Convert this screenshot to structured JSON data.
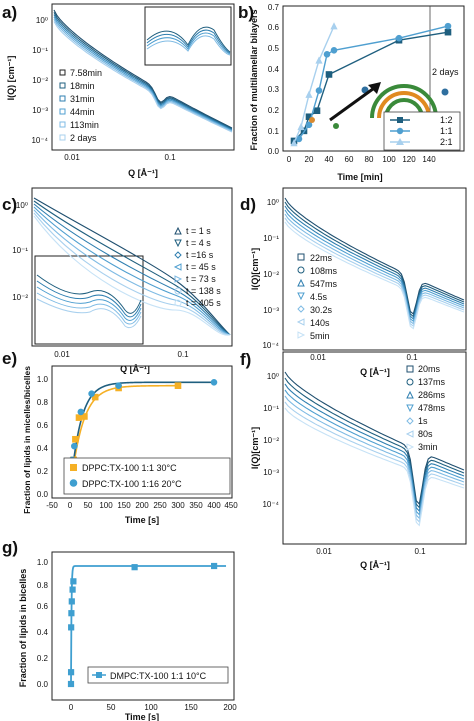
{
  "panels": {
    "a": {
      "label": "a)",
      "ylabel": "I(Q) [cm⁻¹]",
      "xlabel": "Q [Å⁻¹]",
      "legend": [
        "7.58min",
        "18min",
        "31min",
        "44min",
        "113min",
        "2 days"
      ],
      "yticks": [
        "10⁰",
        "10⁻¹",
        "10⁻²",
        "10⁻³",
        "10⁻⁴"
      ],
      "xticks": [
        "0.01",
        "0.1"
      ]
    },
    "b": {
      "label": "b)",
      "ylabel": "Fraction of multilamellar bilayers",
      "xlabel": "Time [min]",
      "annotation": "2 days",
      "legend": [
        "1:2",
        "1:1",
        "2:1"
      ],
      "yticks": [
        "0.0",
        "0.1",
        "0.2",
        "0.3",
        "0.4",
        "0.5",
        "0.6",
        "0.7"
      ],
      "xticks": [
        "0",
        "20",
        "40",
        "60",
        "80",
        "100",
        "120",
        "140"
      ]
    },
    "c": {
      "label": "c)",
      "xlabel": "Q [Å⁻¹]",
      "legend": [
        "t = 1 s",
        "t = 4 s",
        "t =16 s",
        "t = 45 s",
        "t = 73 s",
        "t = 138 s",
        "t = 405 s"
      ],
      "yticks": [
        "10⁰",
        "10⁻¹",
        "10⁻²"
      ],
      "xticks": [
        "0.01",
        "0.1"
      ]
    },
    "d": {
      "label": "d)",
      "ylabel": "I(Q)[cm⁻¹]",
      "xlabel": "Q [Å⁻¹]",
      "legend": [
        "22ms",
        "108ms",
        "547ms",
        "4.5s",
        "30.2s",
        "140s",
        "5min"
      ],
      "yticks": [
        "10⁰",
        "10⁻¹",
        "10⁻²",
        "10⁻³",
        "10⁻⁴"
      ],
      "xticks": [
        "0.01",
        "0.1"
      ]
    },
    "e": {
      "label": "e)",
      "ylabel": "Fraction of lipids in micelles/bicelles",
      "xlabel": "Time [s]",
      "legend": [
        "DPPC:TX-100 1:1 30°C",
        "DPPC:TX-100 1:16 20°C"
      ],
      "yticks": [
        "0.0",
        "0.2",
        "0.4",
        "0.6",
        "0.8",
        "1.0"
      ],
      "xticks": [
        "-50",
        "0",
        "50",
        "100",
        "150",
        "200",
        "250",
        "300",
        "350",
        "400",
        "450"
      ]
    },
    "f": {
      "label": "f)",
      "ylabel": "I(Q)[cm⁻¹]",
      "xlabel": "Q [Å⁻¹]",
      "legend": [
        "20ms",
        "137ms",
        "286ms",
        "478ms",
        "1s",
        "80s",
        "3min"
      ],
      "yticks": [
        "10⁰",
        "10⁻¹",
        "10⁻²",
        "10⁻³",
        "10⁻⁴"
      ],
      "xticks": [
        "0.01",
        "0.1"
      ]
    },
    "g": {
      "label": "g)",
      "ylabel": "Fraction of lipids in bicelles",
      "xlabel": "Time [s]",
      "legend": [
        "DMPC:TX-100 1:1 10°C"
      ],
      "yticks": [
        "0.0",
        "0.2",
        "0.4",
        "0.6",
        "0.8",
        "1.0"
      ],
      "xticks": [
        "0",
        "50",
        "100",
        "150",
        "200"
      ]
    }
  },
  "colors": {
    "dark": "#1f5f7f",
    "mid": "#4f9fd0",
    "light": "#a8d0ee",
    "orange": "#f5b025",
    "e_blue": "#3f9fd0",
    "black": "#222222"
  },
  "chart_data": [
    {
      "type": "line",
      "panel": "b",
      "xlim": [
        0,
        170
      ],
      "ylim": [
        0,
        0.7
      ],
      "series": [
        {
          "name": "1:2",
          "x": [
            5,
            15,
            20,
            28,
            40,
            110,
            165
          ],
          "y": [
            0.05,
            0.1,
            0.17,
            0.2,
            0.38,
            0.55,
            0.59
          ]
        },
        {
          "name": "1:1",
          "x": [
            10,
            20,
            30,
            38,
            45,
            110,
            165
          ],
          "y": [
            0.06,
            0.13,
            0.3,
            0.48,
            0.5,
            0.56,
            0.62
          ]
        },
        {
          "name": "2:1",
          "x": [
            5,
            12,
            20,
            30,
            45
          ],
          "y": [
            0.04,
            0.12,
            0.28,
            0.45,
            0.62
          ]
        }
      ]
    },
    {
      "type": "scatter",
      "panel": "e",
      "xlim": [
        -50,
        450
      ],
      "ylim": [
        0,
        1.0
      ],
      "series": [
        {
          "name": "DPPC:TX-100 1:1 30°C",
          "x": [
            5,
            10,
            15,
            25,
            40,
            70,
            135,
            300
          ],
          "y": [
            0.1,
            0.3,
            0.48,
            0.67,
            0.68,
            0.85,
            0.93,
            0.95
          ]
        },
        {
          "name": "DPPC:TX-100 1:16 20°C",
          "x": [
            0,
            2,
            6,
            12,
            30,
            60,
            135,
            400
          ],
          "y": [
            0.05,
            0.18,
            0.3,
            0.42,
            0.72,
            0.88,
            0.95,
            0.98
          ]
        }
      ]
    },
    {
      "type": "scatter",
      "panel": "g",
      "xlim": [
        -10,
        200
      ],
      "ylim": [
        0,
        1.0
      ],
      "series": [
        {
          "name": "DMPC:TX-100 1:1 10°C",
          "x": [
            0,
            0.1,
            0.2,
            0.5,
            1,
            2,
            3,
            80,
            180
          ],
          "y": [
            0,
            0.1,
            0.48,
            0.6,
            0.7,
            0.8,
            0.87,
            0.99,
            1.0
          ]
        }
      ]
    }
  ]
}
